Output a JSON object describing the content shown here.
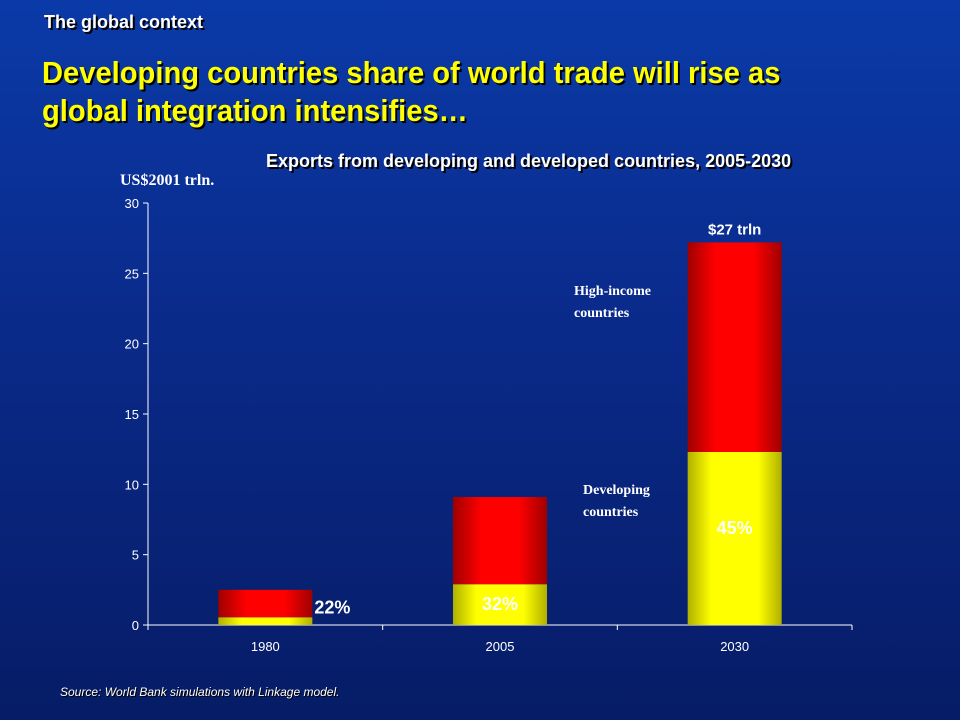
{
  "slide": {
    "kicker": "The global context",
    "title": "Developing countries share of world trade will rise as global integration intensifies…",
    "source": "Source: World Bank simulations with Linkage model."
  },
  "chart_data": {
    "type": "bar",
    "stacked": true,
    "title": "Exports from developing and developed countries, 2005-2030",
    "ylabel": "US$2001 trln.",
    "xlabel": "",
    "ylim": [
      0,
      30
    ],
    "yticks": [
      0,
      5,
      10,
      15,
      20,
      25,
      30
    ],
    "categories": [
      "1980",
      "2005",
      "2030"
    ],
    "series": [
      {
        "name": "Developing countries",
        "values": [
          0.55,
          2.9,
          12.3
        ],
        "color": "#ffff00"
      },
      {
        "name": "High-income countries",
        "values": [
          1.95,
          6.2,
          14.9
        ],
        "color": "#ff0000"
      }
    ],
    "share_labels": [
      "22%",
      "32%",
      "45%"
    ],
    "total_annotation": "$27 trln",
    "grid": false
  },
  "colors": {
    "background_top": "#0a3aa8",
    "background_bottom": "#061c66",
    "title": "#ffff00",
    "text": "#ffffff",
    "developing": "#ffff00",
    "high_income": "#ff0000",
    "high_income_dark": "#8b0000"
  }
}
